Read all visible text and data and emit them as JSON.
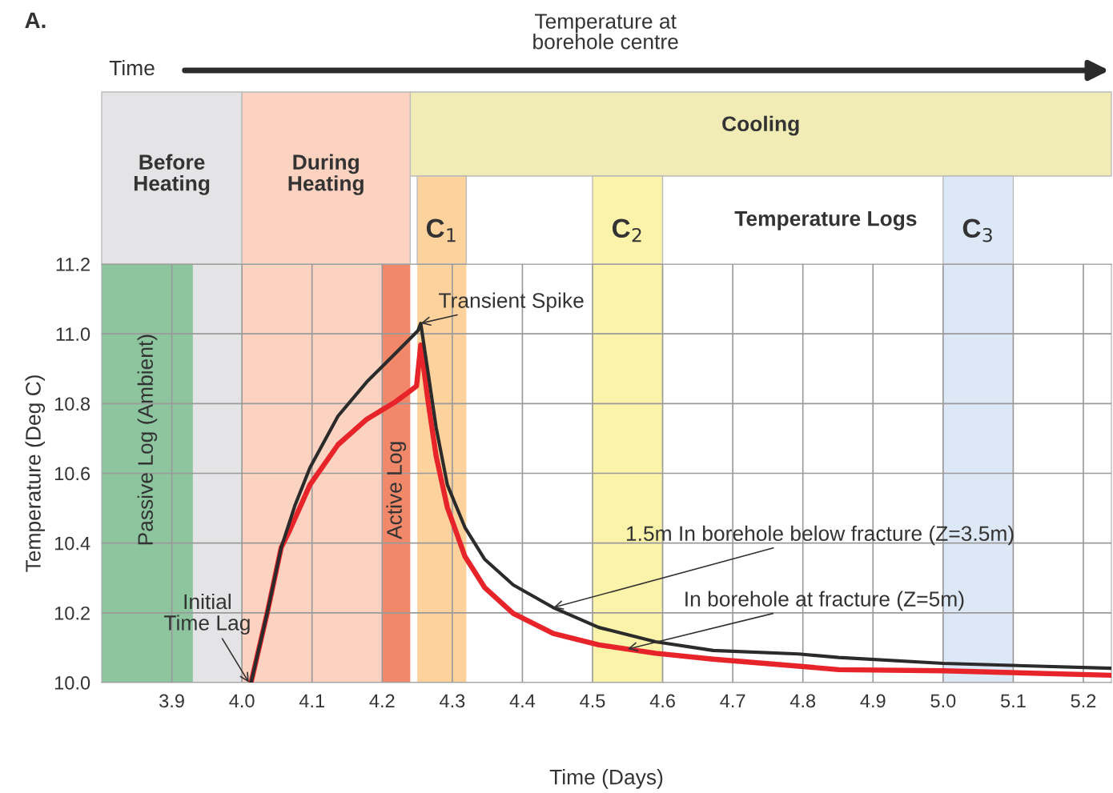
{
  "chart_data": {
    "type": "line",
    "xlabel": "Time (Days)",
    "ylabel": "Temperature (Deg C)",
    "xlim": [
      3.8,
      5.24
    ],
    "ylim": [
      10.0,
      11.2
    ],
    "xticks": [
      3.9,
      {
        "value": 4.0,
        "label": "4.0"
      },
      4.1,
      4.2,
      4.3,
      4.4,
      4.5,
      4.6,
      4.7,
      4.8,
      4.9,
      {
        "value": 5.0,
        "label": "5.0"
      },
      5.1,
      5.2
    ],
    "yticks": [
      {
        "value": 10.0,
        "label": "10.0"
      },
      10.2,
      10.4,
      10.6,
      10.8,
      {
        "value": 11.0,
        "label": "11.0"
      },
      11.2
    ],
    "grid": true,
    "marker": "none",
    "line_style": "solid",
    "series": [
      {
        "color": "#2b2b2b",
        "x": [
          4.013,
          4.036,
          4.056,
          4.076,
          4.097,
          4.137,
          4.178,
          4.219,
          4.251,
          4.255,
          4.265,
          4.277,
          4.293,
          4.318,
          4.346,
          4.387,
          4.444,
          4.509,
          4.59,
          4.672,
          4.794,
          4.851,
          5.0,
          5.238
        ],
        "values": [
          10.0,
          10.199,
          10.387,
          10.51,
          10.616,
          10.764,
          10.862,
          10.944,
          11.009,
          11.03,
          10.895,
          10.731,
          10.567,
          10.445,
          10.354,
          10.28,
          10.215,
          10.158,
          10.117,
          10.092,
          10.082,
          10.072,
          10.055,
          10.041
        ]
      },
      {
        "color": "#e8242b",
        "x": [
          4.013,
          4.036,
          4.056,
          4.068,
          4.097,
          4.137,
          4.178,
          4.219,
          4.249,
          4.255,
          4.265,
          4.277,
          4.293,
          4.318,
          4.346,
          4.387,
          4.444,
          4.509,
          4.59,
          4.672,
          4.794,
          4.851,
          5.0,
          5.238
        ],
        "values": [
          10.0,
          10.199,
          10.387,
          10.436,
          10.567,
          10.682,
          10.755,
          10.805,
          10.85,
          10.968,
          10.813,
          10.649,
          10.502,
          10.362,
          10.273,
          10.198,
          10.141,
          10.108,
          10.084,
          10.067,
          10.047,
          10.037,
          10.034,
          10.021
        ]
      }
    ],
    "bands": [
      {
        "axis": "x",
        "from": 3.8,
        "to": 4.0,
        "color": "#e4e4e6"
      },
      {
        "axis": "x",
        "from": 4.0,
        "to": 4.24,
        "color": "#fcd3c1"
      },
      {
        "axis": "x",
        "from": 3.8,
        "to": 3.93,
        "label": "Passive Log (Ambient)",
        "color": "#8dc59f"
      },
      {
        "axis": "x",
        "from": 4.2,
        "to": 4.24,
        "label": "Active Log",
        "color": "#f2886a"
      },
      {
        "axis": "x",
        "from": 4.25,
        "to": 4.32,
        "label": "C$_{1}$",
        "color": "#fdd29c"
      },
      {
        "axis": "x",
        "from": 4.5,
        "to": 4.6,
        "label": "C$_{2}$",
        "color": "#fbf3a9"
      },
      {
        "axis": "x",
        "from": 5.0,
        "to": 5.1,
        "label": "C$_{3}$",
        "color": "#dce8f5"
      }
    ],
    "annotations": [
      "A.",
      "Time",
      "Temperature at\nborehole centre",
      "Temperature Logs",
      "Before\nHeating",
      "During\nHeating",
      "Cooling",
      {
        "text": "Transient Spike",
        "x": 4.255,
        "y": 11.03
      },
      {
        "text": "Initial\nTime Lag",
        "x": 4.01,
        "y": 10.0
      },
      {
        "text": "1.5m In borehole below fracture (Z=3.5m)",
        "x": 4.444,
        "y": 10.215
      },
      {
        "text": "In borehole at fracture (Z=5m)",
        "x": 4.55,
        "y": 10.096
      }
    ]
  }
}
